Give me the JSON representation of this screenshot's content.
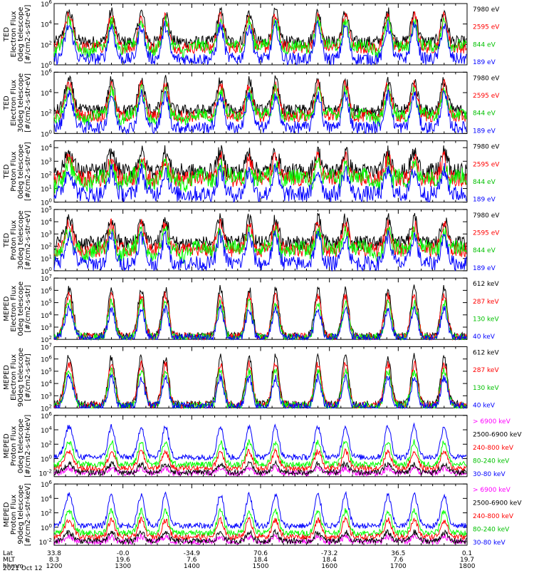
{
  "chart_data": [
    {
      "type": "line",
      "ylabel": [
        "TED",
        "Electron Flux",
        "0deg telescope",
        "[#/cm2-s-str-eV]"
      ],
      "y_ticks": [
        "10^6",
        "10^4",
        "10^2",
        "10^0"
      ],
      "ylim_log10": [
        0,
        6
      ],
      "series": [
        {
          "name": "7980 eV",
          "color": "#000000"
        },
        {
          "name": "2595 eV",
          "color": "#ff0000"
        },
        {
          "name": "844 eV",
          "color": "#00ff00"
        },
        {
          "name": "189 eV",
          "color": "#0000ff"
        }
      ]
    },
    {
      "type": "line",
      "ylabel": [
        "TED",
        "Electron Flux",
        "30deg telescope",
        "[#/cm2-s-str-eV]"
      ],
      "y_ticks": [
        "10^6",
        "10^4",
        "10^2",
        "10^0"
      ],
      "ylim_log10": [
        0,
        6
      ],
      "series": [
        {
          "name": "7980 eV",
          "color": "#000000"
        },
        {
          "name": "2595 eV",
          "color": "#ff0000"
        },
        {
          "name": "844 eV",
          "color": "#00ff00"
        },
        {
          "name": "189 eV",
          "color": "#0000ff"
        }
      ]
    },
    {
      "type": "line",
      "ylabel": [
        "TED",
        "Proton Flux",
        "0deg telescope",
        "[#/cm2-s-str-eV]"
      ],
      "y_ticks": [
        "10^4",
        "10^3",
        "10^2",
        "10^1",
        "10^0"
      ],
      "ylim_log10": [
        0,
        4.5
      ],
      "series": [
        {
          "name": "7980 eV",
          "color": "#000000"
        },
        {
          "name": "2595 eV",
          "color": "#ff0000"
        },
        {
          "name": "844 eV",
          "color": "#00ff00"
        },
        {
          "name": "189 eV",
          "color": "#0000ff"
        }
      ]
    },
    {
      "type": "line",
      "ylabel": [
        "TED",
        "Proton Flux",
        "30deg telescope",
        "[#/cm2-s-str-eV]"
      ],
      "y_ticks": [
        "10^5",
        "10^4",
        "10^3",
        "10^2",
        "10^1",
        "10^0"
      ],
      "ylim_log10": [
        0,
        5
      ],
      "series": [
        {
          "name": "7980 eV",
          "color": "#000000"
        },
        {
          "name": "2595 eV",
          "color": "#ff0000"
        },
        {
          "name": "844 eV",
          "color": "#00ff00"
        },
        {
          "name": "189 eV",
          "color": "#0000ff"
        }
      ]
    },
    {
      "type": "line",
      "ylabel": [
        "MEPED",
        "Electron Flux",
        "0deg telescope",
        "[#/cm2-s-str]"
      ],
      "y_ticks": [
        "10^7",
        "10^6",
        "10^5",
        "10^4",
        "10^3",
        "10^2"
      ],
      "ylim_log10": [
        2,
        7
      ],
      "series": [
        {
          "name": "612 keV",
          "color": "#000000"
        },
        {
          "name": "287 keV",
          "color": "#ff0000"
        },
        {
          "name": "130 keV",
          "color": "#00ff00"
        },
        {
          "name": "40 keV",
          "color": "#0000ff"
        }
      ]
    },
    {
      "type": "line",
      "ylabel": [
        "MEPED",
        "Electron Flux",
        "90deg telescope",
        "[#/cm2-s-str]"
      ],
      "y_ticks": [
        "10^7",
        "10^6",
        "10^5",
        "10^4",
        "10^3",
        "10^2"
      ],
      "ylim_log10": [
        2,
        7
      ],
      "series": [
        {
          "name": "612 keV",
          "color": "#000000"
        },
        {
          "name": "287 keV",
          "color": "#ff0000"
        },
        {
          "name": "130 keV",
          "color": "#00ff00"
        },
        {
          "name": "40 keV",
          "color": "#0000ff"
        }
      ]
    },
    {
      "type": "line",
      "ylabel": [
        "MEPED",
        "Proton Flux",
        "0deg telescope",
        "[#/cm2-s-str-keV]"
      ],
      "y_ticks": [
        "10^6",
        "10^4",
        "10^2",
        "10^0",
        "10^-2"
      ],
      "ylim_log10": [
        -2.5,
        6
      ],
      "series": [
        {
          "name": "> 6900 keV",
          "color": "#ff00ff"
        },
        {
          "name": "2500-6900 keV",
          "color": "#000000"
        },
        {
          "name": "240-800 keV",
          "color": "#ff0000"
        },
        {
          "name": "80-240 keV",
          "color": "#00ff00"
        },
        {
          "name": "30-80 keV",
          "color": "#0000ff"
        }
      ]
    },
    {
      "type": "line",
      "ylabel": [
        "MEPED",
        "Proton Flux",
        "90deg telescope",
        "[#/cm2-s-str-keV]"
      ],
      "y_ticks": [
        "10^6",
        "10^4",
        "10^2",
        "10^0",
        "10^-2"
      ],
      "ylim_log10": [
        -2.5,
        6
      ],
      "series": [
        {
          "name": "> 6900 keV",
          "color": "#ff00ff"
        },
        {
          "name": "2500-6900 keV",
          "color": "#000000"
        },
        {
          "name": "240-800 keV",
          "color": "#ff0000"
        },
        {
          "name": "80-240 keV",
          "color": "#00ff00"
        },
        {
          "name": "30-80 keV",
          "color": "#0000ff"
        }
      ]
    }
  ],
  "x_axis": {
    "row_labels": [
      "Lat",
      "MLT",
      "hhmm"
    ],
    "date": "2021 Oct 12",
    "ticks": [
      {
        "lat": "33.8",
        "mlt": "8.3",
        "hhmm": "1200"
      },
      {
        "lat": "-0.0",
        "mlt": "19.6",
        "hhmm": "1300"
      },
      {
        "lat": "-34.9",
        "mlt": "7.6",
        "hhmm": "1400"
      },
      {
        "lat": "70.6",
        "mlt": "18.4",
        "hhmm": "1500"
      },
      {
        "lat": "-73.2",
        "mlt": "18.4",
        "hhmm": "1600"
      },
      {
        "lat": "36.5",
        "mlt": "7.6",
        "hhmm": "1700"
      },
      {
        "lat": "0.1",
        "mlt": "19.7",
        "hhmm": "1800"
      }
    ],
    "xlim_minutes": [
      0,
      360
    ]
  },
  "events": [
    {
      "center_min": 13,
      "width_min": 5
    },
    {
      "center_min": 50,
      "width_min": 4
    },
    {
      "center_min": 76,
      "width_min": 4
    },
    {
      "center_min": 97,
      "width_min": 4
    },
    {
      "center_min": 145,
      "width_min": 4
    },
    {
      "center_min": 170,
      "width_min": 4
    },
    {
      "center_min": 193,
      "width_min": 4
    },
    {
      "center_min": 230,
      "width_min": 4
    },
    {
      "center_min": 254,
      "width_min": 4
    },
    {
      "center_min": 291,
      "width_min": 4
    },
    {
      "center_min": 314,
      "width_min": 4
    },
    {
      "center_min": 340,
      "width_min": 4
    }
  ]
}
